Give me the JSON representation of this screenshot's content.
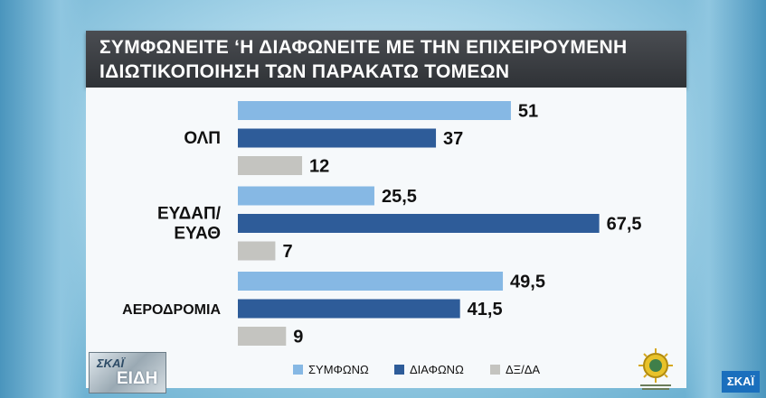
{
  "title": {
    "line1": "ΣΥΜΦΩΝΕΙΤΕ ‘Η ΔΙΑΦΩΝΕΙΤΕ ΜΕ ΤΗΝ ΕΠΙΧΕΙΡΟΥΜΕΝΗ",
    "line2": "ΙΔΙΩΤΙΚΟΠΟΙΗΣΗ ΤΩΝ ΠΑΡΑΚΑΤΩ ΤΟΜΕΩΝ"
  },
  "chart_data": {
    "type": "bar",
    "orientation": "horizontal",
    "categories": [
      {
        "lines": [
          "ΟΛΠ"
        ]
      },
      {
        "lines": [
          "ΕΥΔΑΠ/",
          "ΕΥΑΘ"
        ]
      },
      {
        "lines": [
          "ΑΕΡΟΔΡΟΜΙΑ"
        ]
      }
    ],
    "series": [
      {
        "name": "ΣΥΜΦΩΝΩ",
        "color": "#86b8e4",
        "values": [
          51,
          25.5,
          49.5
        ],
        "labels": [
          "51",
          "25,5",
          "49,5"
        ]
      },
      {
        "name": "ΔΙΑΦΩΝΩ",
        "color": "#2e5c99",
        "values": [
          37,
          67.5,
          41.5
        ],
        "labels": [
          "37",
          "67,5",
          "41,5"
        ]
      },
      {
        "name": "ΔΞ/ΔΑ",
        "color": "#c4c4c0",
        "values": [
          12,
          7,
          9
        ],
        "labels": [
          "12",
          "7",
          "9"
        ]
      }
    ],
    "xlim": [
      0,
      100
    ],
    "legend": "bottom",
    "grid": false
  },
  "branding": {
    "left_logo_top": "ΣΚΑΪ",
    "left_logo_bottom": "ΕΙΔΗ",
    "channel": "ΣΚΑΪ"
  }
}
